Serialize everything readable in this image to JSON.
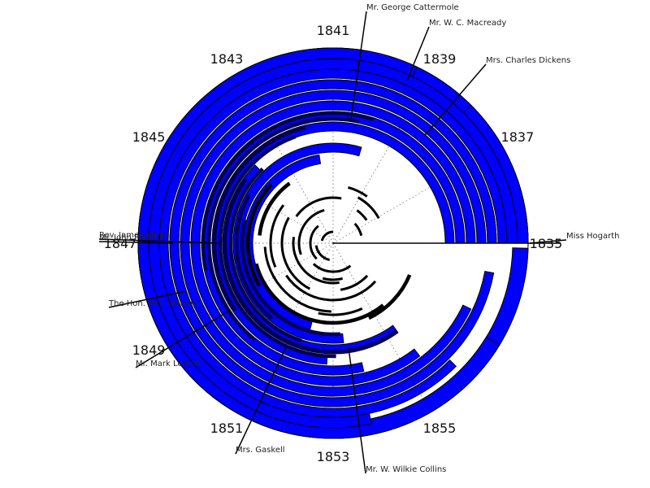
{
  "chart_data": {
    "type": "radial-timeline",
    "title": "",
    "start_year": 1835,
    "end_year": 1859,
    "direction": "counterclockwise",
    "colors": {
      "arc": "#0000ff",
      "arc_edge": "#000000",
      "minor_arc": "#000000",
      "leader": "#000000",
      "grid": "#555555"
    },
    "year_ticks": [
      "1835",
      "1837",
      "1839",
      "1841",
      "1843",
      "1845",
      "1847",
      "1849",
      "1851",
      "1853",
      "1855"
    ],
    "correspondents": [
      {
        "name": "Miss Hogarth",
        "start": 1835.0,
        "end": 1858.9,
        "ring": 10
      },
      {
        "name": "Mrs. Charles Dickens",
        "start": 1835.0,
        "end": 1838.0,
        "ring": 10
      },
      {
        "name": "Mr. W. C. Macready",
        "start": 1839.3,
        "end": 1856.9,
        "ring": 10
      },
      {
        "name": "Mr. George Cattermole",
        "start": 1841.3,
        "end": 1845.3,
        "ring": 9
      },
      {
        "name": "Rev. James White",
        "start": 1835.0,
        "end": 1853.8,
        "ring": 9
      },
      {
        "name": "Mr. John Forster",
        "start": 1835.0,
        "end": 1856.0,
        "ring": 8
      },
      {
        "name": "The Hon. Mrs. Watson",
        "start": 1835.0,
        "end": 1857.0,
        "ring": 7
      },
      {
        "name": "Mr. Mark Lemon",
        "start": 1835.0,
        "end": 1858.3,
        "ring": 7
      },
      {
        "name": "Mrs. Gaskell",
        "start": 1835.0,
        "end": 1857.3,
        "ring": 6
      },
      {
        "name": "Mr. W. Wilkie Collins",
        "start": 1835.0,
        "end": 1855.5,
        "ring": 5
      },
      {
        "name": "",
        "start": 1835.0,
        "end": 1853.9,
        "ring": 4
      },
      {
        "name": "",
        "start": 1835.0,
        "end": 1852.8,
        "ring": 3
      },
      {
        "name": "",
        "start": 1844.0,
        "end": 1855.4,
        "ring": 2
      },
      {
        "name": "",
        "start": 1839.9,
        "end": 1853.4,
        "ring": 1
      },
      {
        "name": "",
        "start": 1841.6,
        "end": 1852.0,
        "ring": 0
      }
    ],
    "labels": [
      {
        "name": "Mr. George Cattermole",
        "anchor": [
          451,
          14
        ],
        "elbow": [
          432,
          146
        ]
      },
      {
        "name": "Mr. W. C. Macready",
        "anchor": [
          528,
          33
        ],
        "elbow": [
          501,
          99
        ]
      },
      {
        "name": "Mrs. Charles Dickens",
        "anchor": [
          598,
          79
        ],
        "elbow": [
          523,
          166
        ]
      },
      {
        "name": "Miss Hogarth",
        "anchor": [
          697,
          295
        ],
        "elbow": [
          652,
          299
        ]
      },
      {
        "name": "Rev. James White",
        "anchor": [
          122,
          294
        ],
        "elbow": [
          268,
          299
        ]
      },
      {
        "name": "Mr. John Forster",
        "anchor": [
          122,
          297
        ],
        "elbow": [
          213,
          299
        ]
      },
      {
        "name": "The Hon. Mrs. Watson",
        "anchor": [
          134,
          378
        ],
        "elbow": [
          229,
          358
        ]
      },
      {
        "name": "Mr. Mark Lemon",
        "anchor": [
          167,
          452
        ],
        "elbow": [
          282,
          382
        ]
      },
      {
        "name": "Mrs. Gaskell",
        "anchor": [
          290,
          558
        ],
        "elbow": [
          352,
          427
        ]
      },
      {
        "name": "Mr. W. Wilkie Collins",
        "anchor": [
          450,
          582
        ],
        "elbow": [
          429,
          428
        ]
      }
    ],
    "inner_arcs": [
      {
        "start": 1839.8,
        "end": 1847.8,
        "r": 160
      },
      {
        "start": 1840.2,
        "end": 1850.4,
        "r": 153
      },
      {
        "start": 1841.9,
        "end": 1849.3,
        "r": 146
      },
      {
        "start": 1842.3,
        "end": 1853.1,
        "r": 139
      },
      {
        "start": 1844.6,
        "end": 1855.4,
        "r": 133
      },
      {
        "start": 1843.9,
        "end": 1851.8,
        "r": 126
      },
      {
        "start": 1845.0,
        "end": 1850.4,
        "r": 119
      },
      {
        "start": 1846.0,
        "end": 1853.3,
        "r": 112
      },
      {
        "start": 1844.1,
        "end": 1849.0,
        "r": 105
      },
      {
        "start": 1848.0,
        "end": 1855.6,
        "r": 98
      },
      {
        "start": 1843.4,
        "end": 1846.6,
        "r": 91
      },
      {
        "start": 1847.2,
        "end": 1852.9,
        "r": 84
      },
      {
        "start": 1844.5,
        "end": 1848.5,
        "r": 77
      },
      {
        "start": 1849.3,
        "end": 1856.2,
        "r": 70
      },
      {
        "start": 1845.0,
        "end": 1851.2,
        "r": 63
      },
      {
        "start": 1840.3,
        "end": 1844.6,
        "r": 56
      },
      {
        "start": 1846.4,
        "end": 1853.6,
        "r": 49
      },
      {
        "start": 1842.0,
        "end": 1848.3,
        "r": 42
      },
      {
        "start": 1850.1,
        "end": 1855.5,
        "r": 35
      },
      {
        "start": 1843.7,
        "end": 1849.9,
        "r": 28
      },
      {
        "start": 1847.5,
        "end": 1852.2,
        "r": 21
      },
      {
        "start": 1841.0,
        "end": 1846.2,
        "r": 14
      },
      {
        "start": 1836.9,
        "end": 1839.1,
        "r": 64
      },
      {
        "start": 1837.3,
        "end": 1838.6,
        "r": 50
      },
      {
        "start": 1852.2,
        "end": 1854.6,
        "r": 88
      },
      {
        "start": 1836.0,
        "end": 1837.8,
        "r": 36
      },
      {
        "start": 1853.6,
        "end": 1856.1,
        "r": 58
      },
      {
        "start": 1851.9,
        "end": 1854.0,
        "r": 45
      },
      {
        "start": 1838.6,
        "end": 1840.0,
        "r": 71
      },
      {
        "start": 1854.7,
        "end": 1857.5,
        "r": 102
      }
    ]
  }
}
